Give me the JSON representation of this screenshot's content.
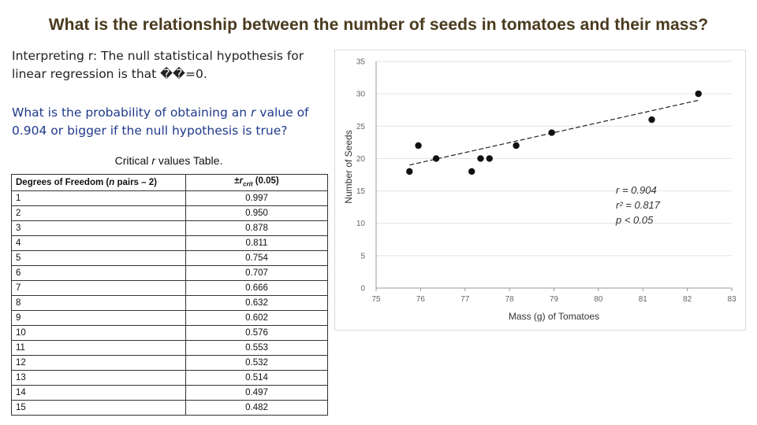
{
  "slide": {
    "title": "What is the relationship between the number of seeds in tomatoes and their mass?",
    "interp_line1": "Interpreting r: The null statistical hypothesis for",
    "interp_line2": "linear regression is that ",
    "interp_symbol": "��",
    "interp_eq": "=",
    "interp_val": "0.",
    "question_p1": "What is the probability of obtaining an ",
    "question_r": "r",
    "question_p2": " value of 0.904 or bigger if the null hypothesis is true?",
    "caption_pre": "Critical ",
    "caption_r": "r",
    "caption_post": " values Table."
  },
  "table": {
    "header_df_pre": "Degrees of Freedom (",
    "header_df_n": "n",
    "header_df_post": " pairs – 2)",
    "header_r_pm": "±",
    "header_r_r": "r",
    "header_r_sub": "crit",
    "header_r_alpha": " (0.05)",
    "rows": [
      [
        "1",
        "0.997"
      ],
      [
        "2",
        "0.950"
      ],
      [
        "3",
        "0.878"
      ],
      [
        "4",
        "0.811"
      ],
      [
        "5",
        "0.754"
      ],
      [
        "6",
        "0.707"
      ],
      [
        "7",
        "0.666"
      ],
      [
        "8",
        "0.632"
      ],
      [
        "9",
        "0.602"
      ],
      [
        "10",
        "0.576"
      ],
      [
        "11",
        "0.553"
      ],
      [
        "12",
        "0.532"
      ],
      [
        "13",
        "0.514"
      ],
      [
        "14",
        "0.497"
      ],
      [
        "15",
        "0.482"
      ]
    ]
  },
  "chart_data": {
    "type": "scatter",
    "title": "",
    "xlabel": "Mass (g) of Tomatoes",
    "ylabel": "Number of Seeds",
    "xlim": [
      75,
      83
    ],
    "ylim": [
      0,
      35
    ],
    "x_ticks": [
      75,
      76,
      77,
      78,
      79,
      80,
      81,
      82,
      83
    ],
    "y_ticks": [
      0,
      5,
      10,
      15,
      20,
      25,
      30,
      35
    ],
    "points": [
      {
        "x": 75.75,
        "y": 18
      },
      {
        "x": 75.95,
        "y": 22
      },
      {
        "x": 76.35,
        "y": 20
      },
      {
        "x": 77.15,
        "y": 18
      },
      {
        "x": 77.35,
        "y": 20
      },
      {
        "x": 77.55,
        "y": 20
      },
      {
        "x": 78.15,
        "y": 22
      },
      {
        "x": 78.95,
        "y": 24
      },
      {
        "x": 81.2,
        "y": 26
      },
      {
        "x": 82.25,
        "y": 30
      }
    ],
    "trendline": {
      "style": "dashed",
      "x": [
        75.75,
        82.25
      ],
      "y": [
        19.0,
        29.0
      ]
    },
    "annotations": {
      "r": "r =  0.904",
      "r2": "r² = 0.817",
      "p": "p < 0.05"
    }
  }
}
